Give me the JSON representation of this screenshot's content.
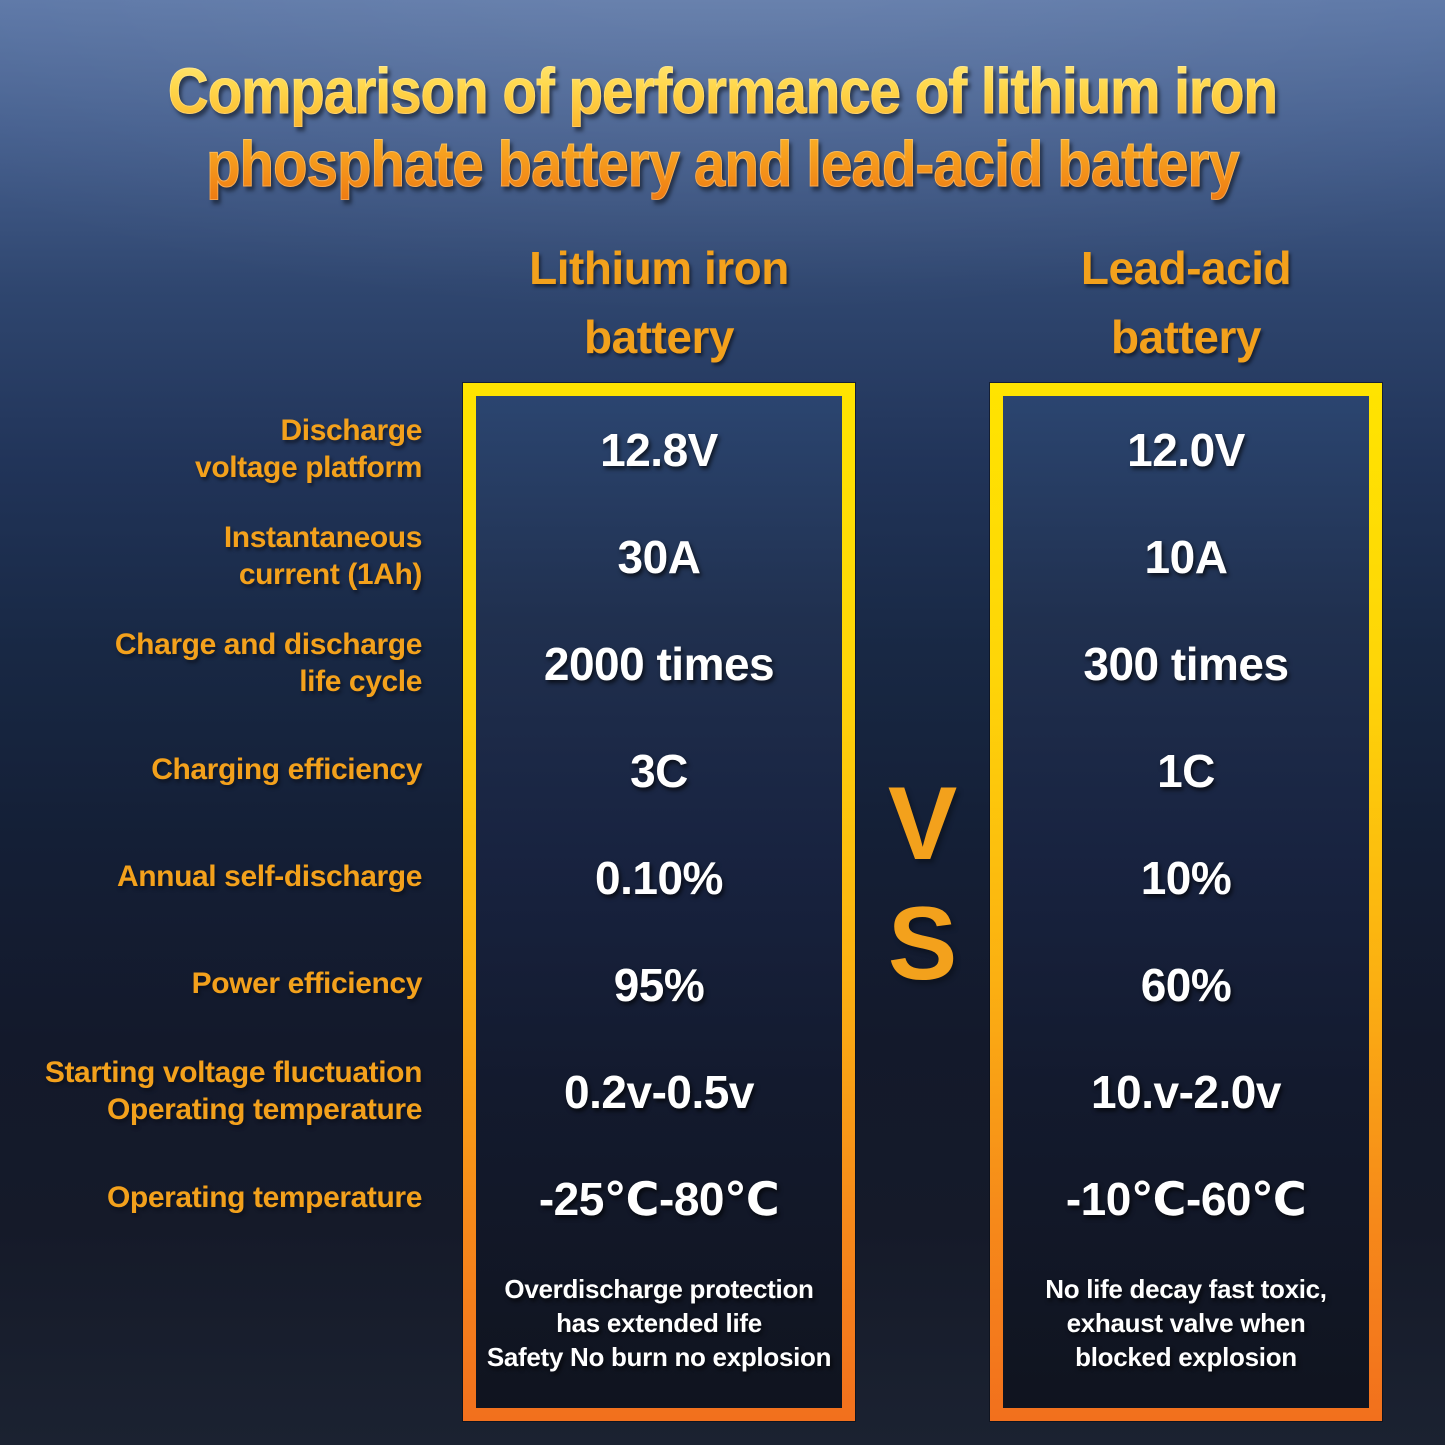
{
  "title": {
    "text": "Comparison of performance of lithium iron\nphosphate battery and lead-acid battery"
  },
  "headers": {
    "lithium": "Lithium iron\nbattery",
    "lead": "Lead-acid\nbattery"
  },
  "vs": {
    "v": "V",
    "s": "S"
  },
  "row_labels": [
    "Discharge\nvoltage platform",
    "Instantaneous\ncurrent (1Ah)",
    "Charge and discharge\nlife cycle",
    "Charging efficiency",
    "Annual self-discharge",
    "Power efficiency",
    "Starting voltage fluctuation\nOperating temperature",
    "Operating temperature"
  ],
  "footers": {
    "lithium": "Overdischarge protection\nhas extended life\nSafety No burn no explosion",
    "lead": "No life decay fast toxic,\nexhaust valve when\nblocked explosion"
  },
  "colors": {
    "accent_orange": "#f3a11c",
    "border_gradient_top": "#ffe400",
    "border_gradient_bottom": "#f2701d",
    "title_gradient_top": "#ffe97c",
    "title_gradient_bottom": "#ee7a12",
    "value_text": "#ffffff",
    "background_top": "#5b76a6",
    "background_bottom": "#1b2231",
    "box_fill_top": "#2b4570",
    "box_fill_bottom": "#10141f"
  },
  "chart_data": {
    "type": "table",
    "title": "Comparison of performance of lithium iron phosphate battery and lead-acid battery",
    "columns": [
      "Metric",
      "Lithium iron battery",
      "Lead-acid battery"
    ],
    "rows": [
      {
        "metric": "Discharge voltage platform",
        "lithium_iron": "12.8V",
        "lead_acid": "12.0V"
      },
      {
        "metric": "Instantaneous current (1Ah)",
        "lithium_iron": "30A",
        "lead_acid": "10A"
      },
      {
        "metric": "Charge and discharge life cycle",
        "lithium_iron": "2000 times",
        "lead_acid": "300 times"
      },
      {
        "metric": "Charging efficiency",
        "lithium_iron": "3C",
        "lead_acid": "1C"
      },
      {
        "metric": "Annual self-discharge",
        "lithium_iron": "0.10%",
        "lead_acid": "10%"
      },
      {
        "metric": "Power efficiency",
        "lithium_iron": "95%",
        "lead_acid": "60%"
      },
      {
        "metric": "Starting voltage fluctuation Operating temperature",
        "lithium_iron": "0.2v-0.5v",
        "lead_acid": "10.v-2.0v"
      },
      {
        "metric": "Operating temperature",
        "lithium_iron": "-25℃-80℃",
        "lead_acid": "-10℃-60℃"
      }
    ],
    "footnotes": {
      "lithium_iron": "Overdischarge protection has extended life Safety No burn no explosion",
      "lead_acid": "No life decay fast toxic, exhaust valve when blocked explosion"
    },
    "separator": "VS",
    "legend_position": "top"
  }
}
